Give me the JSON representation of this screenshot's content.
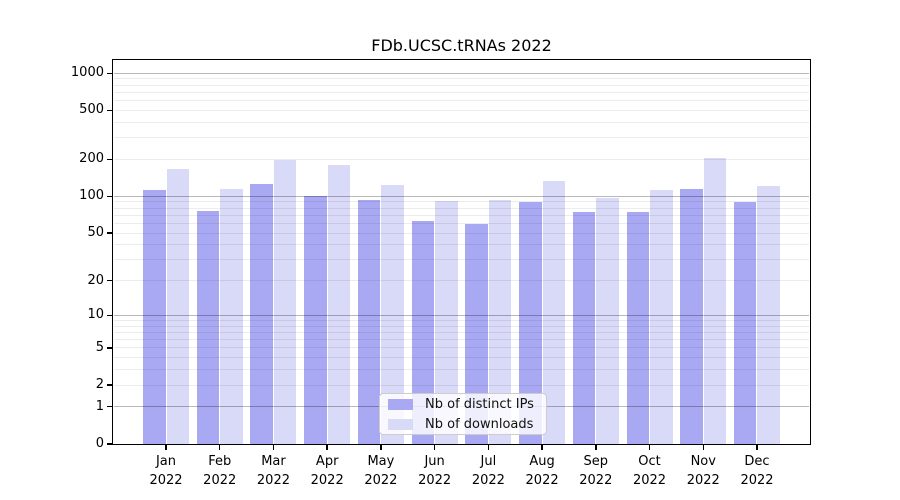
{
  "chart_data": {
    "type": "bar",
    "title": "FDb.UCSC.tRNAs 2022",
    "categories": [
      "Jan 2022",
      "Feb 2022",
      "Mar 2022",
      "Apr 2022",
      "May 2022",
      "Jun 2022",
      "Jul 2022",
      "Aug 2022",
      "Sep 2022",
      "Oct 2022",
      "Nov 2022",
      "Dec 2022"
    ],
    "series": [
      {
        "name": "Nb of distinct IPs",
        "color": "#a9a9f3",
        "values": [
          112,
          76,
          127,
          101,
          93,
          63,
          59,
          90,
          74,
          75,
          114,
          90
        ]
      },
      {
        "name": "Nb of downloads",
        "color": "#d9d9f8",
        "values": [
          167,
          114,
          197,
          180,
          123,
          91,
          93,
          133,
          97,
          112,
          206,
          122
        ]
      }
    ],
    "xlabel": "",
    "ylabel": "",
    "yscale": "log1p",
    "yticks": [
      0,
      1,
      2,
      5,
      10,
      20,
      50,
      100,
      200,
      500,
      1000
    ],
    "ylim": [
      0,
      1280
    ],
    "grid": "horizontal minor and major gridlines drawn over bars",
    "legend_position": "inside lower-center",
    "colors": {
      "major_gridline": "#b8b8b8",
      "minor_gridline": "#ededed",
      "axis": "#000000",
      "background": "#ffffff"
    }
  }
}
